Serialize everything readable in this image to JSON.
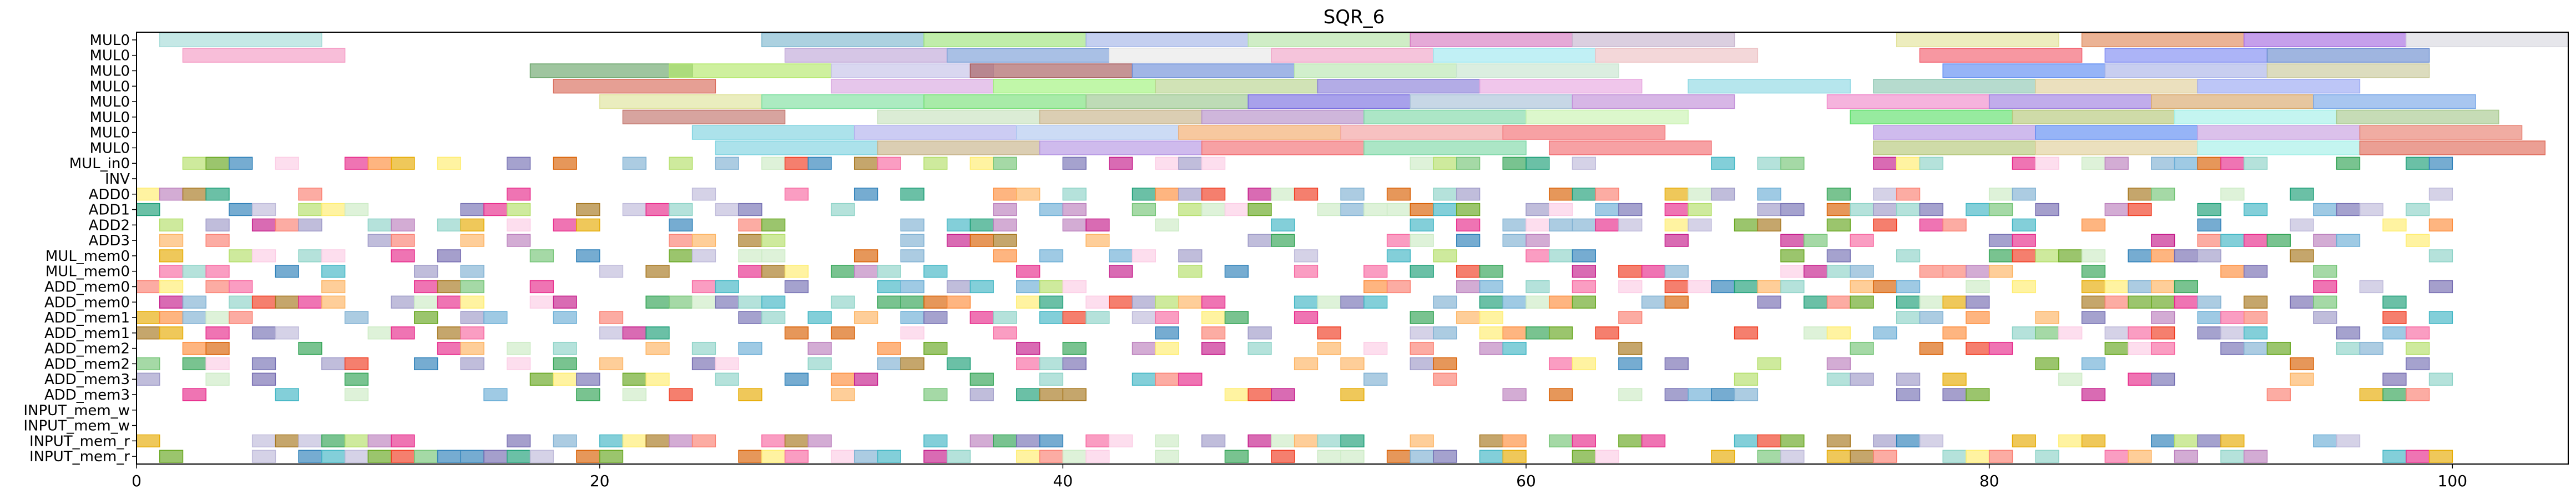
{
  "chart_data": {
    "type": "gantt",
    "title": "SQR_6",
    "xlabel": "",
    "ylabel": "",
    "xlim": [
      0,
      105
    ],
    "xticks": [
      0,
      20,
      40,
      60,
      80,
      100
    ],
    "xtick_labels": [
      "0",
      "20",
      "40",
      "60",
      "80",
      "100"
    ],
    "grid": false,
    "rows": [
      "MUL0",
      "MUL0",
      "MUL0",
      "MUL0",
      "MUL0",
      "MUL0",
      "MUL0",
      "MUL0",
      "MUL_in0",
      "INV",
      "ADD0",
      "ADD1",
      "ADD2",
      "ADD3",
      "MUL_mem0",
      "MUL_mem0",
      "ADD_mem0",
      "ADD_mem0",
      "ADD_mem1",
      "ADD_mem1",
      "ADD_mem2",
      "ADD_mem2",
      "ADD_mem3",
      "ADD_mem3",
      "INPUT_mem_w",
      "INPUT_mem_w",
      "INPUT_mem_r",
      "INPUT_mem_r"
    ],
    "palette": [
      "#8dd3c7",
      "#ffed6f",
      "#bebada",
      "#fb8072",
      "#80b1d3",
      "#fdb462",
      "#b3de69",
      "#fccde5",
      "#bc80bd",
      "#ccebc5",
      "#1b9e77",
      "#d95f02",
      "#7570b3",
      "#e7298a",
      "#66a61e",
      "#e6ab02",
      "#a6761d",
      "#6baed6",
      "#fd8d3c",
      "#74c476",
      "#9e9ac8",
      "#f768a1",
      "#41b6c4",
      "#c51b8a",
      "#2c7fb8",
      "#f03b20",
      "#31a354",
      "#756bb1"
    ],
    "mul_segments": [
      [
        [
          1,
          8,
          "#a6dcd8"
        ],
        [
          27,
          34,
          "#7fb8cf"
        ],
        [
          34,
          41,
          "#9ee37d"
        ],
        [
          41,
          48,
          "#a5b6e8"
        ],
        [
          48,
          55,
          "#b5e3a8"
        ],
        [
          55,
          62,
          "#d77bc2"
        ],
        [
          62,
          69,
          "#c8b6cf"
        ],
        [
          76,
          83,
          "#e3e39b"
        ],
        [
          84,
          91,
          "#e08a5c"
        ],
        [
          91,
          98,
          "#a66be0"
        ],
        [
          98,
          105,
          "#d9d9e0"
        ]
      ],
      [
        [
          2,
          9,
          "#f49bc4"
        ],
        [
          28,
          35,
          "#c0a8d8"
        ],
        [
          35,
          42,
          "#7b9ed7"
        ],
        [
          42,
          49,
          "#e8e8e8"
        ],
        [
          49,
          56,
          "#f0a5c8"
        ],
        [
          56,
          63,
          "#9fe8f0"
        ],
        [
          63,
          70,
          "#ecc2c4"
        ],
        [
          77,
          84,
          "#f2606f"
        ],
        [
          85,
          92,
          "#7f8cf2"
        ],
        [
          92,
          99,
          "#6b8ed0"
        ]
      ],
      [
        [
          17,
          24,
          "#6ba66b"
        ],
        [
          23,
          30,
          "#b3e86a"
        ],
        [
          30,
          37,
          "#c5c2e8"
        ],
        [
          36,
          43,
          "#a65a5c"
        ],
        [
          43,
          50,
          "#6e8fd8"
        ],
        [
          50,
          57,
          "#b9e6b0"
        ],
        [
          57,
          64,
          "#c8e5d0"
        ],
        [
          78,
          85,
          "#5e8cf2"
        ],
        [
          85,
          92,
          "#aab4e8"
        ],
        [
          92,
          99,
          "#c9c99b"
        ]
      ],
      [
        [
          18,
          25,
          "#d96b5a"
        ],
        [
          30,
          37,
          "#d9a8e0"
        ],
        [
          37,
          44,
          "#a0f27b"
        ],
        [
          44,
          51,
          "#b9d48f"
        ],
        [
          51,
          58,
          "#8a80d8"
        ],
        [
          58,
          65,
          "#e8a8e0"
        ],
        [
          67,
          74,
          "#8fd8e3"
        ],
        [
          75,
          82,
          "#8fc8b4"
        ],
        [
          82,
          89,
          "#e0cf9b"
        ],
        [
          89,
          96,
          "#9aa8f2"
        ]
      ],
      [
        [
          20,
          27,
          "#dfe39b"
        ],
        [
          27,
          34,
          "#7fe0a0"
        ],
        [
          34,
          41,
          "#79e079"
        ],
        [
          41,
          48,
          "#9bc88f"
        ],
        [
          48,
          55,
          "#7a6fe0"
        ],
        [
          55,
          62,
          "#a9c2d8"
        ],
        [
          62,
          69,
          "#c28fd8"
        ],
        [
          73,
          80,
          "#f08acb"
        ],
        [
          80,
          87,
          "#a07fe0"
        ],
        [
          87,
          94,
          "#d9a86b"
        ],
        [
          94,
          101,
          "#7aa8e8"
        ]
      ],
      [
        [
          21,
          28,
          "#c2736b"
        ],
        [
          32,
          39,
          "#c8e2bf"
        ],
        [
          39,
          46,
          "#c8b48a"
        ],
        [
          46,
          53,
          "#b58fc8"
        ],
        [
          53,
          60,
          "#7fd8a8"
        ],
        [
          60,
          67,
          "#c9f2b0"
        ],
        [
          74,
          81,
          "#5fe06b"
        ],
        [
          81,
          88,
          "#b5c87a"
        ],
        [
          88,
          95,
          "#a5f0e8"
        ],
        [
          95,
          102,
          "#a8c98f"
        ]
      ],
      [
        [
          24,
          31,
          "#7fd3e0"
        ],
        [
          31,
          38,
          "#b0b0ed"
        ],
        [
          38,
          45,
          "#b0c8f0"
        ],
        [
          45,
          52,
          "#f2aa6b"
        ],
        [
          52,
          59,
          "#f2a0a0"
        ],
        [
          59,
          66,
          "#f26f73"
        ],
        [
          75,
          82,
          "#b596e3"
        ],
        [
          82,
          89,
          "#5e8cf2"
        ],
        [
          89,
          96,
          "#c8a0e0"
        ],
        [
          96,
          103,
          "#e88070"
        ]
      ]
    ]
  }
}
